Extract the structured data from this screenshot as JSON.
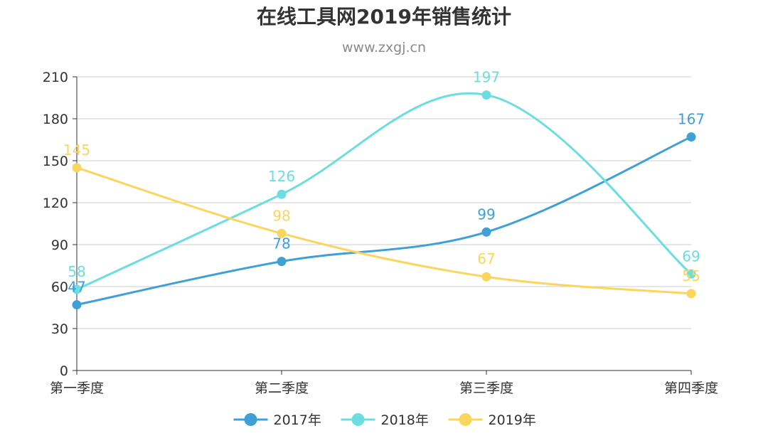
{
  "title": "在线工具网2019年销售统计",
  "subtitle": "www.zxgj.cn",
  "chart_data": {
    "type": "line",
    "smooth": true,
    "title": "在线工具网2019年销售统计",
    "subtitle": "www.zxgj.cn",
    "categories": [
      "第一季度",
      "第二季度",
      "第三季度",
      "第四季度"
    ],
    "series": [
      {
        "name": "2017年",
        "values": [
          47,
          78,
          99,
          167
        ],
        "color": "#3fa0d8"
      },
      {
        "name": "2018年",
        "values": [
          58,
          126,
          197,
          69
        ],
        "color": "#6cdde0"
      },
      {
        "name": "2019年",
        "values": [
          145,
          98,
          67,
          55
        ],
        "color": "#fbd65f"
      }
    ],
    "ylim": [
      0,
      210
    ],
    "yticks": [
      0,
      30,
      60,
      90,
      120,
      150,
      180,
      210
    ],
    "grid": true,
    "legend_position": "bottom",
    "data_labels": true
  }
}
